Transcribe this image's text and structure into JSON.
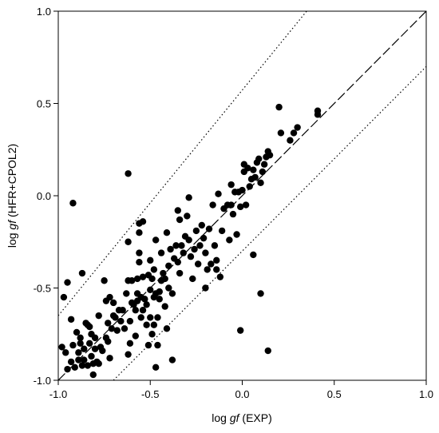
{
  "chart_data": {
    "type": "scatter",
    "title": "",
    "xlabel": "log gf (EXP)",
    "xlabel_prefix": "log ",
    "xlabel_italic": "gf",
    "xlabel_suffix": " (EXP)",
    "ylabel": "log gf (HFR+CPOL2)",
    "ylabel_prefix": "log ",
    "ylabel_italic": "gf",
    "ylabel_suffix": " (HFR+CPOL2)",
    "xlim": [
      -1.0,
      1.0
    ],
    "ylim": [
      -1.0,
      1.0
    ],
    "xticks": [
      -1.0,
      -0.5,
      0.0,
      0.5,
      1.0
    ],
    "yticks": [
      -1.0,
      -0.5,
      0.0,
      0.5,
      1.0
    ],
    "xtick_labels": [
      "-1.0",
      "-0.5",
      "0.0",
      "0.5",
      "1.0"
    ],
    "ytick_labels": [
      "-1.0",
      "-0.5",
      "0.0",
      "0.5",
      "1.0"
    ],
    "grid": false,
    "legend": "none",
    "reference_lines": [
      {
        "style": "dashed",
        "points": [
          [
            -1.0,
            -1.0
          ],
          [
            1.0,
            1.0
          ]
        ]
      },
      {
        "style": "dotted",
        "points": [
          [
            -1.0,
            -0.65
          ],
          [
            0.35,
            1.0
          ]
        ]
      },
      {
        "style": "dotted",
        "points": [
          [
            -0.7,
            -1.0
          ],
          [
            1.0,
            0.7
          ]
        ]
      }
    ],
    "marker_color": "#000000",
    "points": [
      [
        -0.98,
        -0.82
      ],
      [
        -0.97,
        -0.55
      ],
      [
        -0.96,
        -0.85
      ],
      [
        -0.95,
        -0.94
      ],
      [
        -0.95,
        -0.47
      ],
      [
        -0.93,
        -0.9
      ],
      [
        -0.93,
        -0.67
      ],
      [
        -0.92,
        -0.81
      ],
      [
        -0.92,
        -0.04
      ],
      [
        -0.91,
        -0.93
      ],
      [
        -0.9,
        -0.74
      ],
      [
        -0.89,
        -0.89
      ],
      [
        -0.89,
        -0.85
      ],
      [
        -0.88,
        -0.8
      ],
      [
        -0.88,
        -0.77
      ],
      [
        -0.87,
        -0.92
      ],
      [
        -0.87,
        -0.42
      ],
      [
        -0.86,
        -0.89
      ],
      [
        -0.86,
        -0.83
      ],
      [
        -0.85,
        -0.69
      ],
      [
        -0.84,
        -0.7
      ],
      [
        -0.84,
        -0.92
      ],
      [
        -0.83,
        -0.8
      ],
      [
        -0.83,
        -0.71
      ],
      [
        -0.82,
        -0.87
      ],
      [
        -0.82,
        -0.75
      ],
      [
        -0.81,
        -0.97
      ],
      [
        -0.81,
        -0.91
      ],
      [
        -0.8,
        -0.83
      ],
      [
        -0.8,
        -0.77
      ],
      [
        -0.79,
        -0.9
      ],
      [
        -0.78,
        -0.65
      ],
      [
        -0.78,
        -0.91
      ],
      [
        -0.77,
        -0.82
      ],
      [
        -0.76,
        -0.84
      ],
      [
        -0.75,
        -0.46
      ],
      [
        -0.74,
        -0.77
      ],
      [
        -0.74,
        -0.57
      ],
      [
        -0.73,
        -0.79
      ],
      [
        -0.73,
        -0.69
      ],
      [
        -0.72,
        -0.88
      ],
      [
        -0.72,
        -0.55
      ],
      [
        -0.71,
        -0.72
      ],
      [
        -0.7,
        -0.65
      ],
      [
        -0.7,
        -0.58
      ],
      [
        -0.69,
        -0.66
      ],
      [
        -0.68,
        -0.73
      ],
      [
        -0.67,
        -0.62
      ],
      [
        -0.66,
        -0.68
      ],
      [
        -0.65,
        -0.62
      ],
      [
        -0.64,
        -0.72
      ],
      [
        -0.63,
        -0.53
      ],
      [
        -0.62,
        -0.46
      ],
      [
        -0.62,
        0.12
      ],
      [
        -0.62,
        -0.25
      ],
      [
        -0.62,
        -0.86
      ],
      [
        -0.61,
        -0.68
      ],
      [
        -0.61,
        -0.8
      ],
      [
        -0.6,
        -0.58
      ],
      [
        -0.6,
        -0.46
      ],
      [
        -0.59,
        -0.59
      ],
      [
        -0.58,
        -0.62
      ],
      [
        -0.58,
        -0.76
      ],
      [
        -0.57,
        -0.57
      ],
      [
        -0.57,
        -0.53
      ],
      [
        -0.57,
        -0.45
      ],
      [
        -0.56,
        -0.15
      ],
      [
        -0.56,
        -0.2
      ],
      [
        -0.56,
        -0.31
      ],
      [
        -0.56,
        -0.36
      ],
      [
        -0.55,
        -0.55
      ],
      [
        -0.55,
        -0.66
      ],
      [
        -0.54,
        -0.14
      ],
      [
        -0.54,
        -0.44
      ],
      [
        -0.54,
        -0.62
      ],
      [
        -0.53,
        -0.56
      ],
      [
        -0.52,
        -0.7
      ],
      [
        -0.52,
        -0.59
      ],
      [
        -0.51,
        -0.43
      ],
      [
        -0.51,
        -0.81
      ],
      [
        -0.5,
        -0.66
      ],
      [
        -0.5,
        -0.51
      ],
      [
        -0.5,
        -0.35
      ],
      [
        -0.49,
        -0.75
      ],
      [
        -0.49,
        -0.45
      ],
      [
        -0.48,
        -0.55
      ],
      [
        -0.48,
        -0.4
      ],
      [
        -0.48,
        -0.7
      ],
      [
        -0.47,
        -0.24
      ],
      [
        -0.47,
        -0.53
      ],
      [
        -0.47,
        -0.93
      ],
      [
        -0.46,
        -0.66
      ],
      [
        -0.46,
        -0.81
      ],
      [
        -0.45,
        -0.56
      ],
      [
        -0.45,
        -0.52
      ],
      [
        -0.44,
        -0.46
      ],
      [
        -0.44,
        -0.31
      ],
      [
        -0.43,
        -0.42
      ],
      [
        -0.42,
        -0.45
      ],
      [
        -0.42,
        -0.6
      ],
      [
        -0.41,
        -0.2
      ],
      [
        -0.41,
        -0.72
      ],
      [
        -0.4,
        -0.38
      ],
      [
        -0.4,
        -0.5
      ],
      [
        -0.39,
        -0.29
      ],
      [
        -0.38,
        -0.53
      ],
      [
        -0.38,
        -0.89
      ],
      [
        -0.37,
        -0.34
      ],
      [
        -0.36,
        -0.27
      ],
      [
        -0.35,
        -0.36
      ],
      [
        -0.35,
        -0.08
      ],
      [
        -0.34,
        -0.13
      ],
      [
        -0.34,
        -0.42
      ],
      [
        -0.33,
        -0.27
      ],
      [
        -0.32,
        -0.31
      ],
      [
        -0.31,
        -0.22
      ],
      [
        -0.3,
        -0.11
      ],
      [
        -0.29,
        -0.24
      ],
      [
        -0.29,
        -0.01
      ],
      [
        -0.28,
        -0.33
      ],
      [
        -0.27,
        -0.45
      ],
      [
        -0.26,
        -0.29
      ],
      [
        -0.25,
        -0.19
      ],
      [
        -0.24,
        -0.37
      ],
      [
        -0.23,
        -0.27
      ],
      [
        -0.22,
        -0.16
      ],
      [
        -0.21,
        -0.23
      ],
      [
        -0.2,
        -0.31
      ],
      [
        -0.2,
        -0.5
      ],
      [
        -0.19,
        -0.4
      ],
      [
        -0.18,
        -0.18
      ],
      [
        -0.17,
        -0.37
      ],
      [
        -0.16,
        -0.05
      ],
      [
        -0.15,
        -0.27
      ],
      [
        -0.14,
        -0.4
      ],
      [
        -0.14,
        -0.35
      ],
      [
        -0.13,
        0.01
      ],
      [
        -0.12,
        -0.44
      ],
      [
        -0.11,
        -0.19
      ],
      [
        -0.1,
        -0.07
      ],
      [
        -0.08,
        -0.05
      ],
      [
        -0.07,
        -0.24
      ],
      [
        -0.06,
        -0.05
      ],
      [
        -0.06,
        0.06
      ],
      [
        -0.05,
        -0.1
      ],
      [
        -0.04,
        0.02
      ],
      [
        -0.03,
        -0.21
      ],
      [
        -0.02,
        0.02
      ],
      [
        -0.01,
        -0.06
      ],
      [
        -0.01,
        -0.73
      ],
      [
        0.0,
        0.03
      ],
      [
        0.01,
        0.13
      ],
      [
        0.01,
        0.17
      ],
      [
        0.02,
        -0.05
      ],
      [
        0.03,
        0.15
      ],
      [
        0.04,
        0.05
      ],
      [
        0.05,
        0.09
      ],
      [
        0.06,
        0.14
      ],
      [
        0.06,
        -0.32
      ],
      [
        0.07,
        0.1
      ],
      [
        0.08,
        0.18
      ],
      [
        0.09,
        0.2
      ],
      [
        0.1,
        0.07
      ],
      [
        0.1,
        -0.53
      ],
      [
        0.11,
        0.13
      ],
      [
        0.12,
        0.17
      ],
      [
        0.13,
        0.21
      ],
      [
        0.14,
        0.24
      ],
      [
        0.14,
        -0.84
      ],
      [
        0.15,
        0.22
      ],
      [
        0.2,
        0.48
      ],
      [
        0.21,
        0.34
      ],
      [
        0.26,
        0.3
      ],
      [
        0.28,
        0.34
      ],
      [
        0.3,
        0.37
      ],
      [
        0.41,
        0.44
      ],
      [
        0.41,
        0.46
      ]
    ]
  }
}
